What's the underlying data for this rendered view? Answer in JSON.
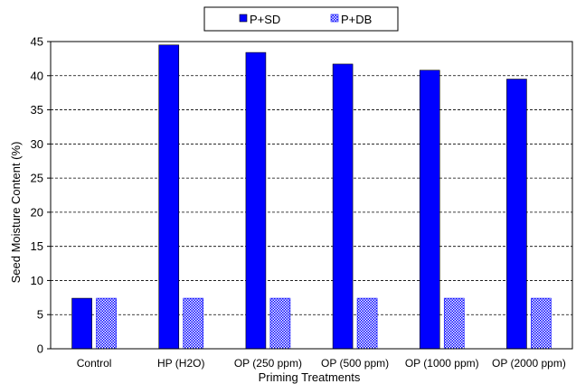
{
  "chart_data": {
    "type": "bar",
    "title": "",
    "xlabel": "Priming Treatments",
    "ylabel": "Seed Moisture Content (%)",
    "ylim": [
      0,
      45
    ],
    "yticks": [
      0,
      5,
      10,
      15,
      20,
      25,
      30,
      35,
      40,
      45
    ],
    "grid": "horizontal dashed",
    "legend_position": "top-center",
    "categories": [
      "Control",
      "HP (H2O)",
      "OP (250 ppm)",
      "OP (500 ppm)",
      "OP (1000 ppm)",
      "OP (2000 ppm)"
    ],
    "series": [
      {
        "name": "P+SD",
        "color": "#0000ff",
        "fill": "solid",
        "values": [
          7.4,
          44.5,
          43.4,
          41.7,
          40.8,
          39.5
        ]
      },
      {
        "name": "P+DB",
        "color": "#0000ff",
        "fill": "checkered",
        "values": [
          7.4,
          7.4,
          7.4,
          7.4,
          7.4,
          7.4
        ]
      }
    ]
  }
}
